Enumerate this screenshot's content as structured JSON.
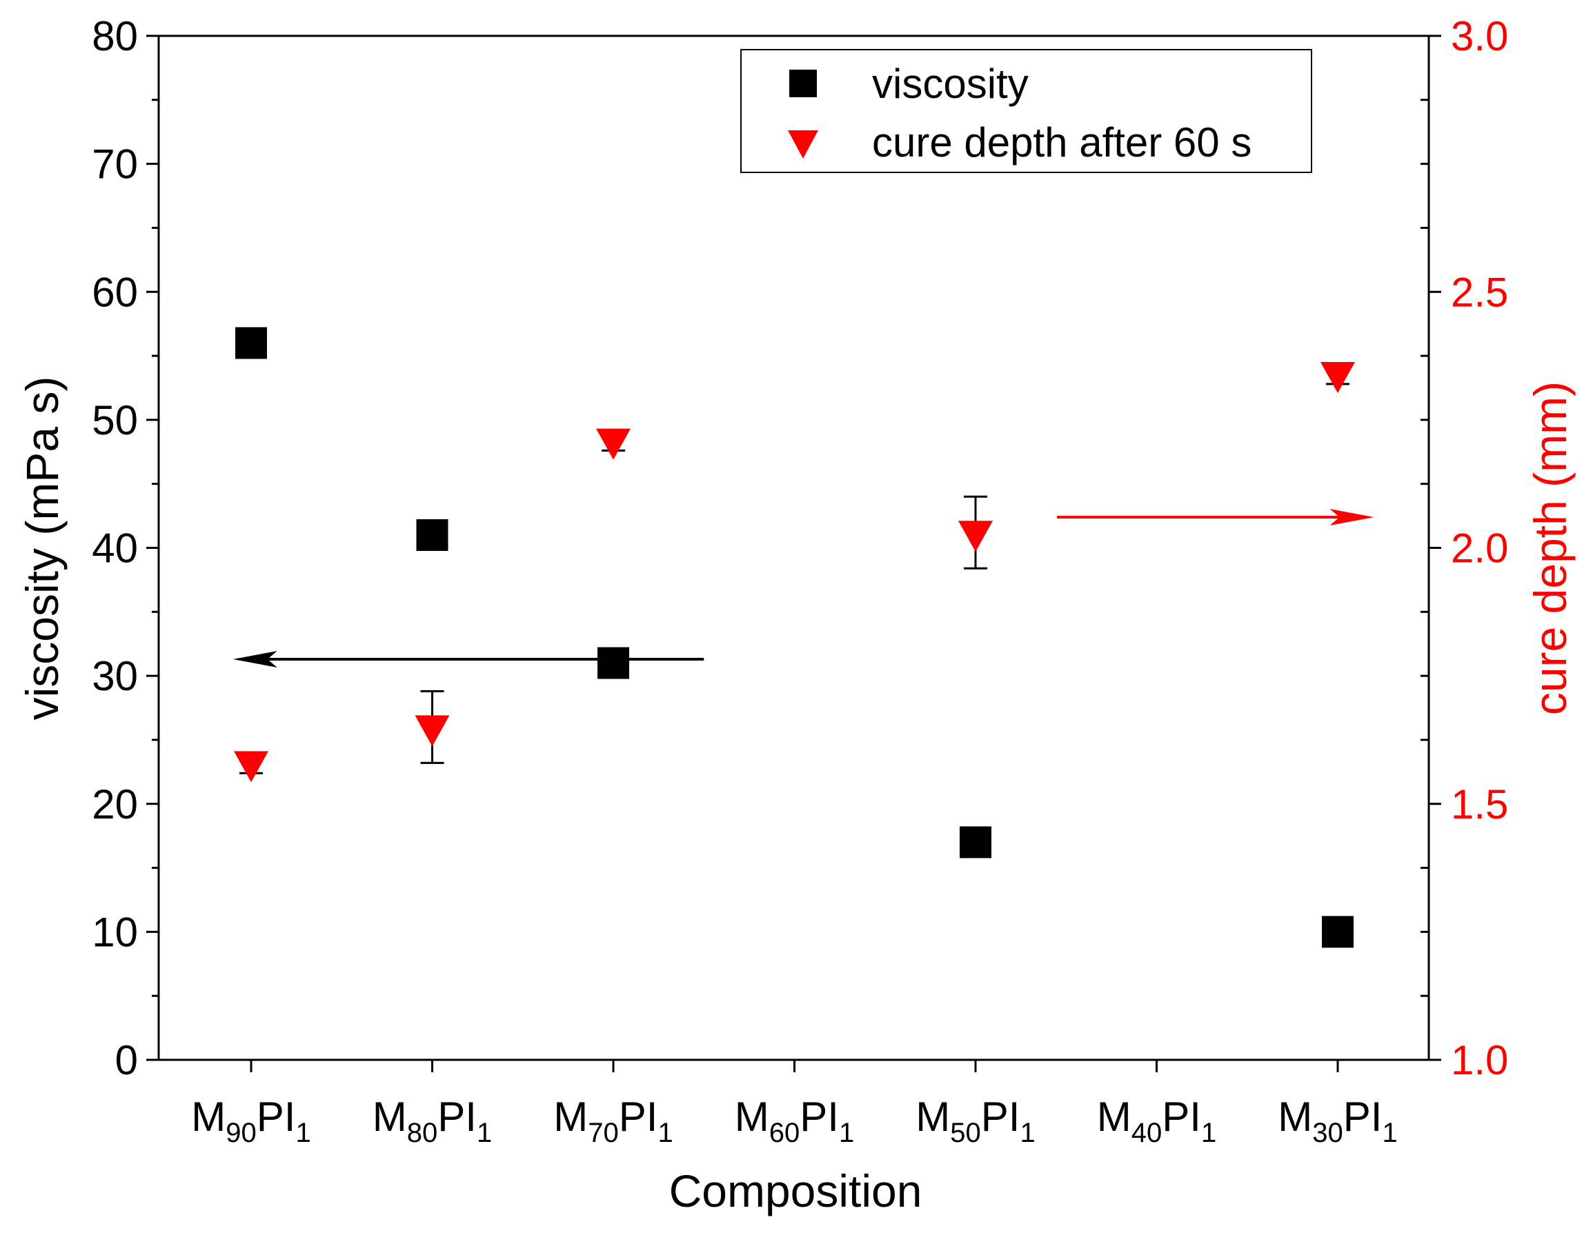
{
  "chart_data": {
    "type": "scatter",
    "title": "",
    "xlabel": "Composition",
    "ylabel_left": "viscosity (mPa s)",
    "ylabel_right": "cure depth (mm)",
    "categories": [
      {
        "base": "M",
        "sub1": "90",
        "mid": "PI",
        "sub2": "1"
      },
      {
        "base": "M",
        "sub1": "80",
        "mid": "PI",
        "sub2": "1"
      },
      {
        "base": "M",
        "sub1": "70",
        "mid": "PI",
        "sub2": "1"
      },
      {
        "base": "M",
        "sub1": "60",
        "mid": "PI",
        "sub2": "1"
      },
      {
        "base": "M",
        "sub1": "50",
        "mid": "PI",
        "sub2": "1"
      },
      {
        "base": "M",
        "sub1": "40",
        "mid": "PI",
        "sub2": "1"
      },
      {
        "base": "M",
        "sub1": "30",
        "mid": "PI",
        "sub2": "1"
      }
    ],
    "ylim_left": [
      0,
      80
    ],
    "ylim_right": [
      1.0,
      3.0
    ],
    "yticks_left": [
      "0",
      "10",
      "20",
      "30",
      "40",
      "50",
      "60",
      "70",
      "80"
    ],
    "yticks_right": [
      "1.0",
      "1.5",
      "2.0",
      "2.5",
      "3.0"
    ],
    "grid": false,
    "legend_position": "top-right",
    "series": [
      {
        "name": "viscosity",
        "axis": "left",
        "marker": "square",
        "color": "#000000",
        "points": [
          {
            "cat": 0,
            "y": 56
          },
          {
            "cat": 1,
            "y": 41
          },
          {
            "cat": 2,
            "y": 31
          },
          {
            "cat": 4,
            "y": 17
          },
          {
            "cat": 6,
            "y": 10
          }
        ]
      },
      {
        "name": "cure depth after 60 s",
        "axis": "right",
        "marker": "triangle-down",
        "color": "#ff0000",
        "points": [
          {
            "cat": 0,
            "y": 1.58,
            "err": 0.02
          },
          {
            "cat": 1,
            "y": 1.65,
            "err": 0.07
          },
          {
            "cat": 2,
            "y": 2.21,
            "err": 0.02
          },
          {
            "cat": 4,
            "y": 2.03,
            "err": 0.07
          },
          {
            "cat": 6,
            "y": 2.34,
            "err": 0.02
          }
        ]
      }
    ],
    "annotations": [
      {
        "type": "arrow",
        "direction": "left",
        "color": "#000000",
        "axis": "left",
        "y": 31.3,
        "from_cat": 2.5,
        "to_cat": -0.1
      },
      {
        "type": "arrow",
        "direction": "right",
        "color": "#ff0000",
        "axis": "right",
        "y": 2.06,
        "from_cat": 4.45,
        "to_cat": 6.2
      }
    ]
  }
}
